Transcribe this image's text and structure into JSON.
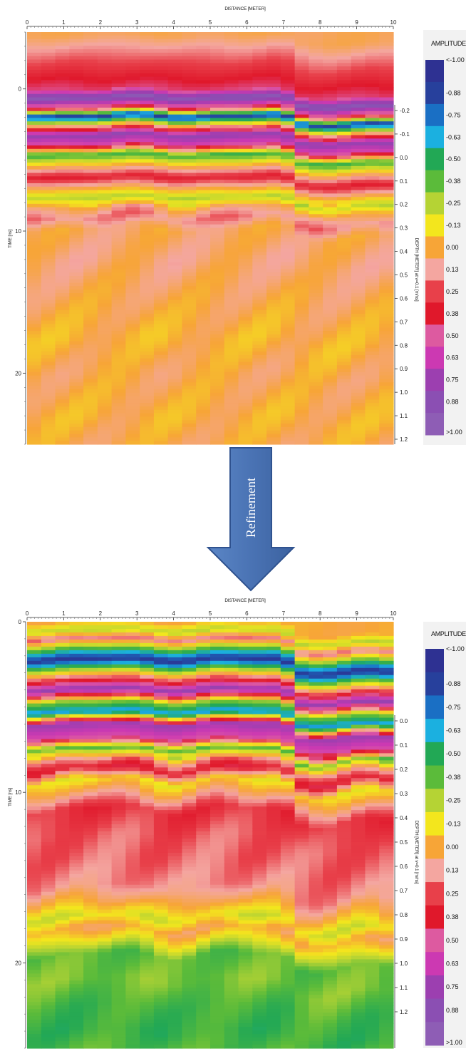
{
  "arrow": {
    "label": "Refinement"
  },
  "chart_data": [
    {
      "type": "heatmap",
      "title": "",
      "xlabel": "DISTANCE [METER]",
      "ylabel": "TIME [ns]",
      "y2label": "DEPTH [METER] at v=0.1 [m/ns]",
      "xlim": [
        0,
        10
      ],
      "ylim": [
        -4,
        25
      ],
      "y2lim": [
        -0.31,
        1.24
      ],
      "x_ticks": [
        "0",
        "1",
        "2",
        "3",
        "4",
        "5",
        "6",
        "7",
        "8",
        "9",
        "10"
      ],
      "y_ticks": [
        "0",
        "10",
        "20"
      ],
      "y2_ticks": [
        "-0.2",
        "-0.1",
        "0.0",
        "0.1",
        "0.2",
        "0.3",
        "0.4",
        "0.5",
        "0.6",
        "0.7",
        "0.8",
        "0.9",
        "1.0",
        "1.1",
        "1.2"
      ],
      "bands": [
        {
          "t": -3.8,
          "a": 0.04
        },
        {
          "t": 0.0,
          "a": 0.45
        },
        {
          "t": 0.6,
          "a": 0.95
        },
        {
          "t": 1.3,
          "a": 0.4
        },
        {
          "t": 1.9,
          "a": -0.9
        },
        {
          "t": 2.6,
          "a": 0.1
        },
        {
          "t": 3.2,
          "a": 0.8
        },
        {
          "t": 3.9,
          "a": 0.55
        },
        {
          "t": 4.6,
          "a": -0.45
        },
        {
          "t": 5.4,
          "a": 0.0
        },
        {
          "t": 6.2,
          "a": 0.35
        },
        {
          "t": 7.0,
          "a": 0.0
        },
        {
          "t": 7.6,
          "a": -0.25
        },
        {
          "t": 8.3,
          "a": 0.05
        },
        {
          "t": 9.0,
          "a": 0.18
        },
        {
          "t": 9.8,
          "a": 0.04
        },
        {
          "t": 12.0,
          "a": 0.07
        },
        {
          "t": 14.5,
          "a": 0.03
        },
        {
          "t": 17.5,
          "a": -0.02
        },
        {
          "t": 20.0,
          "a": 0.03
        },
        {
          "t": 23.0,
          "a": -0.01
        },
        {
          "t": 25.0,
          "a": 0.02
        }
      ],
      "right_shift": 0.6,
      "shift_start_x": 7.0,
      "colorbar": {
        "title": "AMPLITUDE",
        "labels": [
          "<-1.00",
          "-0.88",
          "-0.75",
          "-0.63",
          "-0.50",
          "-0.38",
          "-0.25",
          "-0.13",
          "0.00",
          "0.13",
          "0.25",
          "0.38",
          "0.50",
          "0.63",
          "0.75",
          "0.88",
          ">1.00"
        ]
      }
    },
    {
      "type": "heatmap",
      "title": "",
      "xlabel": "DISTANCE [METER]",
      "ylabel": "TIME [ns]",
      "y2label": "DEPTH [METER] at v=0.1 [m/ns]",
      "xlim": [
        0,
        10
      ],
      "ylim": [
        0,
        25
      ],
      "y2lim": [
        -0.18,
        1.3
      ],
      "x_ticks": [
        "0",
        "1",
        "2",
        "3",
        "4",
        "5",
        "6",
        "7",
        "8",
        "9",
        "10"
      ],
      "y_ticks": [
        "0",
        "10",
        "20"
      ],
      "y2_ticks": [
        "0.0",
        "0.1",
        "0.2",
        "0.3",
        "0.4",
        "0.5",
        "0.6",
        "0.7",
        "0.8",
        "0.9",
        "1.0",
        "1.1",
        "1.2"
      ],
      "bands": [
        {
          "t": 0.0,
          "a": 0.0
        },
        {
          "t": 0.5,
          "a": -0.25
        },
        {
          "t": 1.0,
          "a": 0.2
        },
        {
          "t": 1.6,
          "a": -0.4
        },
        {
          "t": 2.2,
          "a": -0.95
        },
        {
          "t": 2.9,
          "a": -0.2
        },
        {
          "t": 3.4,
          "a": 0.3
        },
        {
          "t": 4.0,
          "a": 0.8
        },
        {
          "t": 4.7,
          "a": -0.3
        },
        {
          "t": 5.3,
          "a": -0.7
        },
        {
          "t": 6.0,
          "a": 0.75
        },
        {
          "t": 6.8,
          "a": 0.55
        },
        {
          "t": 7.4,
          "a": -0.4
        },
        {
          "t": 8.0,
          "a": 0.1
        },
        {
          "t": 8.6,
          "a": 0.38
        },
        {
          "t": 9.3,
          "a": -0.12
        },
        {
          "t": 10.0,
          "a": 0.05
        },
        {
          "t": 11.0,
          "a": 0.3
        },
        {
          "t": 12.5,
          "a": 0.22
        },
        {
          "t": 14.0,
          "a": 0.2
        },
        {
          "t": 15.5,
          "a": 0.15
        },
        {
          "t": 16.5,
          "a": 0.0
        },
        {
          "t": 17.3,
          "a": -0.18
        },
        {
          "t": 18.0,
          "a": 0.02
        },
        {
          "t": 18.6,
          "a": -0.12
        },
        {
          "t": 19.5,
          "a": -0.38
        },
        {
          "t": 21.0,
          "a": -0.33
        },
        {
          "t": 22.5,
          "a": -0.42
        },
        {
          "t": 24.0,
          "a": -0.45
        },
        {
          "t": 25.0,
          "a": -0.4
        }
      ],
      "right_shift": 0.8,
      "shift_start_x": 7.0,
      "colorbar": {
        "title": "AMPLITUDE",
        "labels": [
          "<-1.00",
          "-0.88",
          "-0.75",
          "-0.63",
          "-0.50",
          "-0.38",
          "-0.25",
          "-0.13",
          "0.00",
          "0.13",
          "0.25",
          "0.38",
          "0.50",
          "0.63",
          "0.75",
          "0.88",
          ">1.00"
        ]
      }
    }
  ],
  "colors": {
    "colormap": [
      "#2e3192",
      "#27409c",
      "#1a6fc4",
      "#1bb0e0",
      "#22a855",
      "#5bbb3a",
      "#b5d334",
      "#f3e61d",
      "#f7a537",
      "#f4a6a0",
      "#e8404a",
      "#e0182b",
      "#dd5aa0",
      "#cc39b2",
      "#9c3fb0",
      "#8b4fb3",
      "#8e5db5"
    ],
    "arrow_fill": "#4a73b4",
    "arrow_stroke": "#2f528f"
  }
}
